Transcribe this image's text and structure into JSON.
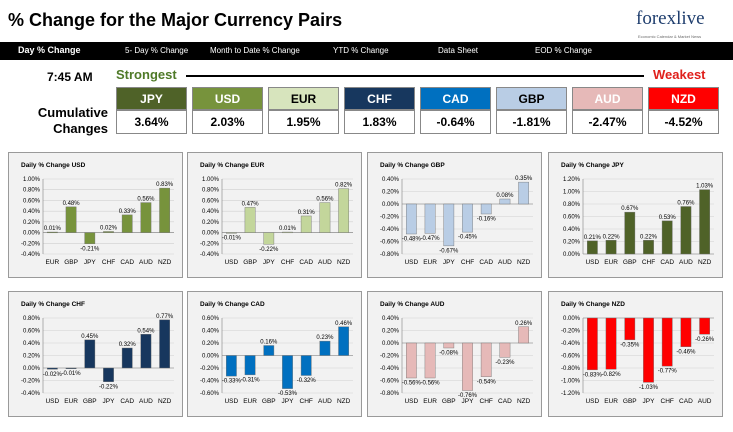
{
  "header": {
    "title": "% Change for the Major Currency Pairs",
    "logo": {
      "brand": "forexlive",
      "tagline": "Economic Calendar & Market News"
    }
  },
  "tabs": [
    {
      "label": "Day % Change",
      "active": true
    },
    {
      "label": "5- Day % Change",
      "active": false
    },
    {
      "label": "Month to Date % Change",
      "active": false
    },
    {
      "label": "YTD % Change",
      "active": false
    },
    {
      "label": "Data Sheet",
      "active": false
    },
    {
      "label": "EOD % Change",
      "active": false
    }
  ],
  "summary": {
    "time": "7:45 AM",
    "strongest_label": "Strongest",
    "weakest_label": "Weakest",
    "row_label_1": "Cumulative",
    "row_label_2": "Changes",
    "currencies": [
      {
        "name": "JPY",
        "value": "3.64%",
        "bg": "#4f6228",
        "fg": "#ffffff"
      },
      {
        "name": "USD",
        "value": "2.03%",
        "bg": "#77933c",
        "fg": "#ffffff"
      },
      {
        "name": "EUR",
        "value": "1.95%",
        "bg": "#d7e4bd",
        "fg": "#000000"
      },
      {
        "name": "CHF",
        "value": "1.83%",
        "bg": "#17375e",
        "fg": "#ffffff"
      },
      {
        "name": "CAD",
        "value": "-0.64%",
        "bg": "#0070c0",
        "fg": "#ffffff"
      },
      {
        "name": "GBP",
        "value": "-1.81%",
        "bg": "#b9cde5",
        "fg": "#000000"
      },
      {
        "name": "AUD",
        "value": "-2.47%",
        "bg": "#e6b9b8",
        "fg": "#ffffff"
      },
      {
        "name": "NZD",
        "value": "-4.52%",
        "bg": "#ff0000",
        "fg": "#ffffff"
      }
    ]
  },
  "chart_data": [
    {
      "type": "bar",
      "title": "Daily % Change USD",
      "categories": [
        "EUR",
        "GBP",
        "JPY",
        "CHF",
        "CAD",
        "AUD",
        "NZD"
      ],
      "values": [
        0.01,
        0.48,
        -0.21,
        0.02,
        0.33,
        0.56,
        0.83
      ],
      "labels": [
        "0.01%",
        "0.48%",
        "-0.21%",
        "0.02%",
        "0.33%",
        "0.56%",
        "0.83%"
      ],
      "ylim": [
        -0.4,
        1.0
      ],
      "yticks": [
        "-0.40%",
        "-0.20%",
        "0.00%",
        "0.20%",
        "0.40%",
        "0.60%",
        "0.80%",
        "1.00%"
      ],
      "color": "#77933c"
    },
    {
      "type": "bar",
      "title": "Daily % Change EUR",
      "categories": [
        "USD",
        "GBP",
        "JPY",
        "CHF",
        "CAD",
        "AUD",
        "NZD"
      ],
      "values": [
        -0.01,
        0.47,
        -0.22,
        0.01,
        0.31,
        0.56,
        0.82
      ],
      "labels": [
        "-0.01%",
        "0.47%",
        "-0.22%",
        "0.01%",
        "0.31%",
        "0.56%",
        "0.82%"
      ],
      "ylim": [
        -0.4,
        1.0
      ],
      "yticks": [
        "-0.40%",
        "-0.20%",
        "0.00%",
        "0.20%",
        "0.40%",
        "0.60%",
        "0.80%",
        "1.00%"
      ],
      "color": "#c3d69b"
    },
    {
      "type": "bar",
      "title": "Daily % Change GBP",
      "categories": [
        "USD",
        "EUR",
        "JPY",
        "CHF",
        "CAD",
        "AUD",
        "NZD"
      ],
      "values": [
        -0.48,
        -0.47,
        -0.67,
        -0.45,
        -0.16,
        0.08,
        0.35
      ],
      "labels": [
        "-0.48%",
        "-0.47%",
        "-0.67%",
        "-0.45%",
        "-0.16%",
        "0.08%",
        "0.35%"
      ],
      "ylim": [
        -0.8,
        0.4
      ],
      "yticks": [
        "-0.80%",
        "-0.60%",
        "-0.40%",
        "-0.20%",
        "0.00%",
        "0.20%",
        "0.40%"
      ],
      "color": "#b9cde5"
    },
    {
      "type": "bar",
      "title": "Daily % Change JPY",
      "categories": [
        "USD",
        "EUR",
        "GBP",
        "CHF",
        "CAD",
        "AUD",
        "NZD"
      ],
      "values": [
        0.21,
        0.22,
        0.67,
        0.22,
        0.53,
        0.76,
        1.03
      ],
      "labels": [
        "0.21%",
        "0.22%",
        "0.67%",
        "0.22%",
        "0.53%",
        "0.76%",
        "1.03%"
      ],
      "ylim": [
        0,
        1.2
      ],
      "yticks": [
        "0.00%",
        "0.20%",
        "0.40%",
        "0.60%",
        "0.80%",
        "1.00%",
        "1.20%"
      ],
      "color": "#4f6228"
    },
    {
      "type": "bar",
      "title": "Daily % Change CHF",
      "categories": [
        "USD",
        "EUR",
        "GBP",
        "JPY",
        "CAD",
        "AUD",
        "NZD"
      ],
      "values": [
        -0.02,
        -0.01,
        0.45,
        -0.22,
        0.32,
        0.54,
        0.77
      ],
      "labels": [
        "-0.02%",
        "-0.01%",
        "0.45%",
        "-0.22%",
        "0.32%",
        "0.54%",
        "0.77%"
      ],
      "ylim": [
        -0.4,
        0.8
      ],
      "yticks": [
        "-0.40%",
        "-0.20%",
        "0.00%",
        "0.20%",
        "0.40%",
        "0.60%",
        "0.80%"
      ],
      "color": "#17375e"
    },
    {
      "type": "bar",
      "title": "Daily % Change CAD",
      "categories": [
        "USD",
        "EUR",
        "GBP",
        "JPY",
        "CHF",
        "AUD",
        "NZD"
      ],
      "values": [
        -0.33,
        -0.31,
        0.16,
        -0.53,
        -0.32,
        0.23,
        0.46
      ],
      "labels": [
        "-0.33%",
        "-0.31%",
        "0.16%",
        "-0.53%",
        "-0.32%",
        "0.23%",
        "0.46%"
      ],
      "ylim": [
        -0.6,
        0.6
      ],
      "yticks": [
        "-0.60%",
        "-0.40%",
        "-0.20%",
        "0.00%",
        "0.20%",
        "0.40%",
        "0.60%"
      ],
      "color": "#0070c0"
    },
    {
      "type": "bar",
      "title": "Daily % Change AUD",
      "categories": [
        "USD",
        "EUR",
        "GBP",
        "JPY",
        "CHF",
        "CAD",
        "NZD"
      ],
      "values": [
        -0.56,
        -0.56,
        -0.08,
        -0.76,
        -0.54,
        -0.23,
        0.26
      ],
      "labels": [
        "-0.56%",
        "-0.56%",
        "-0.08%",
        "-0.76%",
        "-0.54%",
        "-0.23%",
        "0.26%"
      ],
      "ylim": [
        -0.8,
        0.4
      ],
      "yticks": [
        "-0.80%",
        "-0.60%",
        "-0.40%",
        "-0.20%",
        "0.00%",
        "0.20%",
        "0.40%"
      ],
      "color": "#e6b9b8"
    },
    {
      "type": "bar",
      "title": "Daily % Change NZD",
      "categories": [
        "USD",
        "EUR",
        "GBP",
        "JPY",
        "CHF",
        "CAD",
        "AUD"
      ],
      "values": [
        -0.83,
        -0.82,
        -0.35,
        -1.03,
        -0.77,
        -0.46,
        -0.26
      ],
      "labels": [
        "-0.83%",
        "-0.82%",
        "-0.35%",
        "-1.03%",
        "-0.77%",
        "-0.46%",
        "-0.26%"
      ],
      "ylim": [
        -1.2,
        0
      ],
      "yticks": [
        "-1.20%",
        "-1.00%",
        "-0.80%",
        "-0.60%",
        "-0.40%",
        "-0.20%",
        "0.00%"
      ],
      "color": "#ff0000"
    }
  ]
}
